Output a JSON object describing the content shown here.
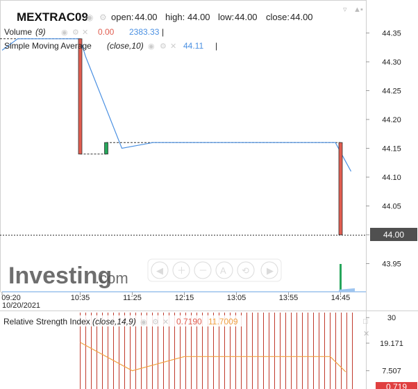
{
  "header": {
    "symbol": "MEXTRAC09",
    "ohlc": [
      {
        "label": "open:",
        "value": "44.00"
      },
      {
        "label": "high:",
        "value": "44.00"
      },
      {
        "label": "low:",
        "value": "44.00"
      },
      {
        "label": "close:",
        "value": "44.00"
      }
    ]
  },
  "legend": {
    "volume": {
      "label": "Volume",
      "params": "(9)",
      "value1": "0.00",
      "value2": "2383.33"
    },
    "sma": {
      "label": "Simple Moving Average",
      "params": "(close,10)",
      "value": "44.11"
    }
  },
  "rsi_legend": {
    "label": "Relative Strength Index",
    "params": "(close,14,9)",
    "value1": "0.7190",
    "value2": "11.7009"
  },
  "current_price_label": "44.00",
  "rsi_current_label": "0.719",
  "watermark": {
    "brand": "Investing",
    "suffix": ".com"
  },
  "colors": {
    "up": "#26a65b",
    "down": "#e05c4f",
    "sma": "#4a90e2",
    "rsi": "#f0a040",
    "rsi_bars": "#c0392b",
    "price_tag": "#505050",
    "rsi_tag": "#e04040"
  },
  "chart_data": [
    {
      "type": "candlestick",
      "x_ticks": [
        "09:20",
        "10:35",
        "11:25",
        "12:15",
        "13:05",
        "13:55",
        "14:45"
      ],
      "date_label": "10/20/2021",
      "y_ticks": [
        "44.35",
        "44.30",
        "44.25",
        "44.20",
        "44.15",
        "44.10",
        "44.05",
        "44.00",
        "43.95"
      ],
      "ylim": [
        43.93,
        44.37
      ],
      "candles": [
        {
          "time": "10:35",
          "open": 44.34,
          "close": 44.14,
          "dir": "down"
        },
        {
          "time": "11:00",
          "open": 44.14,
          "close": 44.16,
          "dir": "up"
        },
        {
          "time": "14:45",
          "open": 44.16,
          "close": 44.0,
          "dir": "down"
        }
      ],
      "sma": [
        {
          "time": "09:20",
          "value": 44.32
        },
        {
          "time": "09:35",
          "value": 44.34
        },
        {
          "time": "10:35",
          "value": 44.34
        },
        {
          "time": "10:40",
          "value": 44.31
        },
        {
          "time": "11:15",
          "value": 44.15
        },
        {
          "time": "11:45",
          "value": 44.16
        },
        {
          "time": "14:40",
          "value": 44.16
        },
        {
          "time": "14:55",
          "value": 44.11
        }
      ],
      "volume": [
        {
          "time": "14:45",
          "value": 2383.33,
          "dir": "up"
        }
      ]
    },
    {
      "type": "line",
      "name": "Relative Strength Index",
      "y_ticks": [
        "30",
        "19.171",
        "7.507"
      ],
      "rsi": [
        {
          "time": "10:35",
          "value": 19.5
        },
        {
          "time": "11:25",
          "value": 7.5
        },
        {
          "time": "12:15",
          "value": 13.5
        },
        {
          "time": "14:35",
          "value": 13.5
        },
        {
          "time": "14:50",
          "value": 7.0
        }
      ]
    }
  ]
}
